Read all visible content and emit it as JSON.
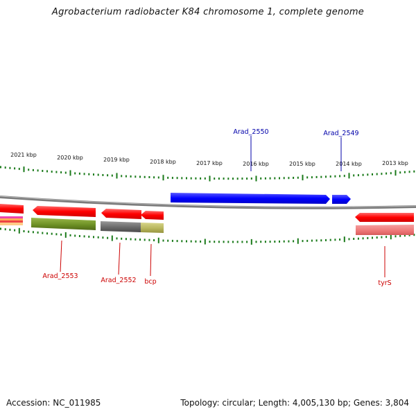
{
  "title": "Agrobacterium radiobacter K84 chromosome 1, complete genome",
  "footer": {
    "accession": "Accession: NC_011985",
    "summary": "Topology: circular; Length: 4,005,130 bp; Genes: 3,804"
  },
  "kbp_labels": [
    "2021 kbp",
    "2020 kbp",
    "2019 kbp",
    "2018 kbp",
    "2017 kbp",
    "2016 kbp",
    "2015 kbp",
    "2014 kbp",
    "2013 kbp"
  ],
  "gene_labels": [
    {
      "text": "Arad_2550",
      "color": "#0000aa"
    },
    {
      "text": "Arad_2549",
      "color": "#0000aa"
    },
    {
      "text": "Arad_2553",
      "color": "#cc0000"
    },
    {
      "text": "Arad_2552",
      "color": "#cc0000"
    },
    {
      "text": "bcp",
      "color": "#cc0000"
    },
    {
      "text": "tyrS",
      "color": "#cc0000"
    }
  ],
  "colors": {
    "forward_gene": "#0000ff",
    "reverse_gene": "#ff0000",
    "tick": "#1a7a1a",
    "backbone": "#7a7a7a",
    "cog_olive": "#6b8e23",
    "cog_gray": "#666666",
    "cog_khaki": "#b5b35a",
    "cog_pink": "#ee7777"
  }
}
